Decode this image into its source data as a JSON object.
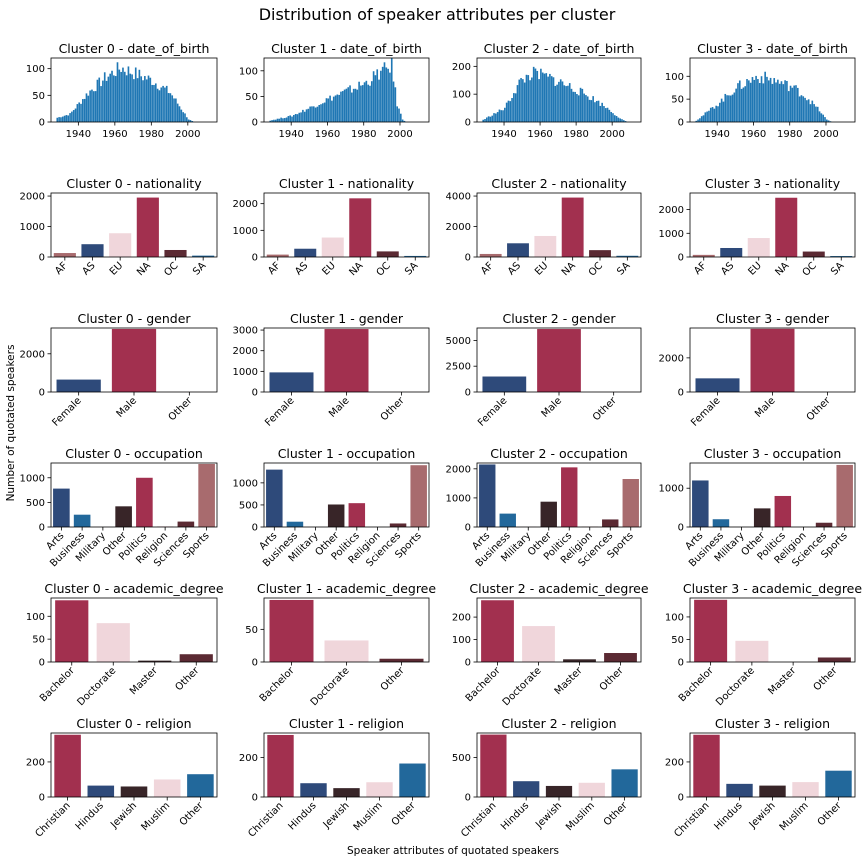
{
  "figure": {
    "title": "Distribution of speaker attributes per cluster",
    "ylabel": "Number of quotated speakers",
    "xlabel": "Speaker attributes of quotated speakers"
  },
  "colors": {
    "blue": "#1f77b4",
    "navy": "#2e4a7a",
    "crimson": "#a2304f",
    "pink": "#f0d6db",
    "maroon": "#5b2a33",
    "dark": "#382528",
    "rose": "#a86b6e",
    "midblue": "#22689b"
  },
  "chart_data": [
    {
      "type": "bar",
      "attribute": "date_of_birth",
      "cluster": 0,
      "title": "Cluster 0 - date_of_birth",
      "xlim": [
        1925,
        2016
      ],
      "xticks": [
        1940,
        1960,
        1980,
        2000
      ],
      "ylim": [
        0,
        120
      ],
      "yticks": [
        0,
        50,
        100
      ],
      "curve": [
        [
          1928,
          8
        ],
        [
          1935,
          15
        ],
        [
          1945,
          55
        ],
        [
          1955,
          85
        ],
        [
          1963,
          102
        ],
        [
          1970,
          92
        ],
        [
          1980,
          78
        ],
        [
          1990,
          55
        ],
        [
          1996,
          25
        ],
        [
          2000,
          5
        ],
        [
          2003,
          0
        ]
      ]
    },
    {
      "type": "bar",
      "attribute": "date_of_birth",
      "cluster": 1,
      "title": "Cluster 1 - date_of_birth",
      "xlim": [
        1925,
        2016
      ],
      "xticks": [
        1940,
        1960,
        1980,
        2000
      ],
      "ylim": [
        0,
        125
      ],
      "yticks": [
        0,
        50,
        100
      ],
      "curve": [
        [
          1928,
          3
        ],
        [
          1940,
          12
        ],
        [
          1950,
          28
        ],
        [
          1960,
          45
        ],
        [
          1970,
          60
        ],
        [
          1980,
          75
        ],
        [
          1988,
          95
        ],
        [
          1995,
          110
        ],
        [
          1998,
          35
        ],
        [
          2001,
          5
        ],
        [
          2003,
          0
        ]
      ]
    },
    {
      "type": "bar",
      "attribute": "date_of_birth",
      "cluster": 2,
      "title": "Cluster 2 - date_of_birth",
      "xlim": [
        1925,
        2016
      ],
      "xticks": [
        1940,
        1960,
        1980,
        2000
      ],
      "ylim": [
        0,
        230
      ],
      "yticks": [
        0,
        100,
        200
      ],
      "curve": [
        [
          1928,
          8
        ],
        [
          1940,
          50
        ],
        [
          1948,
          140
        ],
        [
          1955,
          175
        ],
        [
          1962,
          165
        ],
        [
          1970,
          145
        ],
        [
          1980,
          115
        ],
        [
          1990,
          80
        ],
        [
          1998,
          45
        ],
        [
          2004,
          12
        ],
        [
          2008,
          0
        ]
      ]
    },
    {
      "type": "bar",
      "attribute": "date_of_birth",
      "cluster": 3,
      "title": "Cluster 3 - date_of_birth",
      "xlim": [
        1925,
        2016
      ],
      "xticks": [
        1940,
        1960,
        1980,
        2000
      ],
      "ylim": [
        0,
        140
      ],
      "yticks": [
        0,
        50,
        100
      ],
      "curve": [
        [
          1928,
          3
        ],
        [
          1940,
          40
        ],
        [
          1950,
          75
        ],
        [
          1962,
          100
        ],
        [
          1972,
          90
        ],
        [
          1982,
          75
        ],
        [
          1990,
          50
        ],
        [
          1996,
          25
        ],
        [
          2000,
          5
        ],
        [
          2003,
          0
        ]
      ]
    },
    {
      "type": "bar",
      "attribute": "nationality",
      "cluster": 0,
      "title": "Cluster 0 - nationality",
      "categories": [
        "AF",
        "AS",
        "EU",
        "NA",
        "OC",
        "SA"
      ],
      "values": [
        130,
        420,
        780,
        1950,
        230,
        45
      ],
      "colors": [
        "#a86b6e",
        "#2e4a7a",
        "#f0d6db",
        "#a2304f",
        "#5b2a33",
        "#22689b"
      ],
      "ylim": [
        0,
        2100
      ],
      "yticks": [
        0,
        1000,
        2000
      ],
      "rot": true
    },
    {
      "type": "bar",
      "attribute": "nationality",
      "cluster": 1,
      "title": "Cluster 1 - nationality",
      "categories": [
        "AF",
        "AS",
        "EU",
        "NA",
        "OC",
        "SA"
      ],
      "values": [
        90,
        310,
        730,
        2200,
        210,
        40
      ],
      "colors": [
        "#a86b6e",
        "#2e4a7a",
        "#f0d6db",
        "#a2304f",
        "#5b2a33",
        "#22689b"
      ],
      "ylim": [
        0,
        2400
      ],
      "yticks": [
        0,
        1000,
        2000
      ],
      "rot": true
    },
    {
      "type": "bar",
      "attribute": "nationality",
      "cluster": 2,
      "title": "Cluster 2 - nationality",
      "categories": [
        "AF",
        "AS",
        "EU",
        "NA",
        "OC",
        "SA"
      ],
      "values": [
        200,
        900,
        1380,
        3900,
        450,
        80
      ],
      "colors": [
        "#a86b6e",
        "#2e4a7a",
        "#f0d6db",
        "#a2304f",
        "#5b2a33",
        "#22689b"
      ],
      "ylim": [
        0,
        4200
      ],
      "yticks": [
        0,
        2000,
        4000
      ],
      "rot": true
    },
    {
      "type": "bar",
      "attribute": "nationality",
      "cluster": 3,
      "title": "Cluster 3 - nationality",
      "categories": [
        "AF",
        "AS",
        "EU",
        "NA",
        "OC",
        "SA"
      ],
      "values": [
        90,
        380,
        800,
        2500,
        230,
        40
      ],
      "colors": [
        "#a86b6e",
        "#2e4a7a",
        "#f0d6db",
        "#a2304f",
        "#5b2a33",
        "#22689b"
      ],
      "ylim": [
        0,
        2700
      ],
      "yticks": [
        0,
        1000,
        2000
      ],
      "rot": true
    },
    {
      "type": "bar",
      "attribute": "gender",
      "cluster": 0,
      "title": "Cluster 0 - gender",
      "categories": [
        "Female",
        "Male",
        "Other"
      ],
      "values": [
        650,
        3300,
        5
      ],
      "colors": [
        "#2e4a7a",
        "#a2304f",
        "#f0d6db"
      ],
      "ylim": [
        0,
        3350
      ],
      "yticks": [
        0,
        2000
      ],
      "rot": true
    },
    {
      "type": "bar",
      "attribute": "gender",
      "cluster": 1,
      "title": "Cluster 1 - gender",
      "categories": [
        "Female",
        "Male",
        "Other"
      ],
      "values": [
        950,
        3050,
        5
      ],
      "colors": [
        "#2e4a7a",
        "#a2304f",
        "#f0d6db"
      ],
      "ylim": [
        0,
        3100
      ],
      "yticks": [
        0,
        1000,
        2000,
        3000
      ],
      "rot": true
    },
    {
      "type": "bar",
      "attribute": "gender",
      "cluster": 2,
      "title": "Cluster 2 - gender",
      "categories": [
        "Female",
        "Male",
        "Other"
      ],
      "values": [
        1500,
        6100,
        10
      ],
      "colors": [
        "#2e4a7a",
        "#a2304f",
        "#f0d6db"
      ],
      "ylim": [
        0,
        6200
      ],
      "yticks": [
        0,
        2500,
        5000
      ],
      "rot": true
    },
    {
      "type": "bar",
      "attribute": "gender",
      "cluster": 3,
      "title": "Cluster 3 - gender",
      "categories": [
        "Female",
        "Male",
        "Other"
      ],
      "values": [
        800,
        3700,
        5
      ],
      "colors": [
        "#2e4a7a",
        "#a2304f",
        "#f0d6db"
      ],
      "ylim": [
        0,
        3750
      ],
      "yticks": [
        0,
        2000
      ],
      "rot": true
    },
    {
      "type": "bar",
      "attribute": "occupation",
      "cluster": 0,
      "title": "Cluster 0 - occupation",
      "categories": [
        "Arts",
        "Business",
        "Military",
        "Other",
        "Politics",
        "Religion",
        "Sciences",
        "Sports"
      ],
      "values": [
        780,
        250,
        5,
        420,
        1000,
        15,
        110,
        1280
      ],
      "colors": [
        "#2e4a7a",
        "#22689b",
        "#f0d6db",
        "#382528",
        "#a2304f",
        "#f0d6db",
        "#5b2a33",
        "#a86b6e"
      ],
      "ylim": [
        0,
        1300
      ],
      "yticks": [
        0,
        500,
        1000
      ],
      "rot": true
    },
    {
      "type": "bar",
      "attribute": "occupation",
      "cluster": 1,
      "title": "Cluster 1 - occupation",
      "categories": [
        "Arts",
        "Business",
        "Military",
        "Other",
        "Politics",
        "Religion",
        "Sciences",
        "Sports"
      ],
      "values": [
        1300,
        120,
        5,
        510,
        540,
        5,
        80,
        1400
      ],
      "colors": [
        "#2e4a7a",
        "#22689b",
        "#f0d6db",
        "#382528",
        "#a2304f",
        "#f0d6db",
        "#5b2a33",
        "#a86b6e"
      ],
      "ylim": [
        0,
        1450
      ],
      "yticks": [
        0,
        500,
        1000
      ],
      "rot": true
    },
    {
      "type": "bar",
      "attribute": "occupation",
      "cluster": 2,
      "title": "Cluster 2 - occupation",
      "categories": [
        "Arts",
        "Business",
        "Military",
        "Other",
        "Politics",
        "Religion",
        "Sciences",
        "Sports"
      ],
      "values": [
        2150,
        460,
        10,
        870,
        2050,
        20,
        260,
        1650
      ],
      "colors": [
        "#2e4a7a",
        "#22689b",
        "#f0d6db",
        "#382528",
        "#a2304f",
        "#f0d6db",
        "#5b2a33",
        "#a86b6e"
      ],
      "ylim": [
        0,
        2200
      ],
      "yticks": [
        0,
        1000,
        2000
      ],
      "rot": true
    },
    {
      "type": "bar",
      "attribute": "occupation",
      "cluster": 3,
      "title": "Cluster 3 - occupation",
      "categories": [
        "Arts",
        "Business",
        "Military",
        "Other",
        "Politics",
        "Religion",
        "Sciences",
        "Sports"
      ],
      "values": [
        1200,
        200,
        5,
        480,
        800,
        5,
        110,
        1600
      ],
      "colors": [
        "#2e4a7a",
        "#22689b",
        "#f0d6db",
        "#382528",
        "#a2304f",
        "#f0d6db",
        "#5b2a33",
        "#a86b6e"
      ],
      "ylim": [
        0,
        1650
      ],
      "yticks": [
        0,
        1000
      ],
      "rot": true
    },
    {
      "type": "bar",
      "attribute": "academic_degree",
      "cluster": 0,
      "title": "Cluster 0 - academic_degree",
      "categories": [
        "Bachelor",
        "Doctorate",
        "Master",
        "Other"
      ],
      "values": [
        135,
        85,
        3,
        17
      ],
      "colors": [
        "#a2304f",
        "#f0d6db",
        "#382528",
        "#5b2a33"
      ],
      "ylim": [
        0,
        140
      ],
      "yticks": [
        0,
        50,
        100
      ],
      "rot": true
    },
    {
      "type": "bar",
      "attribute": "academic_degree",
      "cluster": 1,
      "title": "Cluster 1 - academic_degree",
      "categories": [
        "Bachelor",
        "Doctorate",
        "Other"
      ],
      "values": [
        95,
        33,
        5
      ],
      "colors": [
        "#a2304f",
        "#f0d6db",
        "#5b2a33"
      ],
      "ylim": [
        0,
        98
      ],
      "yticks": [
        0,
        50
      ],
      "rot": true
    },
    {
      "type": "bar",
      "attribute": "academic_degree",
      "cluster": 2,
      "title": "Cluster 2 - academic_degree",
      "categories": [
        "Bachelor",
        "Doctorate",
        "Master",
        "Other"
      ],
      "values": [
        275,
        160,
        12,
        40
      ],
      "colors": [
        "#a2304f",
        "#f0d6db",
        "#382528",
        "#5b2a33"
      ],
      "ylim": [
        0,
        285
      ],
      "yticks": [
        0,
        100,
        200
      ],
      "rot": true
    },
    {
      "type": "bar",
      "attribute": "academic_degree",
      "cluster": 3,
      "title": "Cluster 3 - academic_degree",
      "categories": [
        "Bachelor",
        "Doctorate",
        "Master",
        "Other"
      ],
      "values": [
        138,
        47,
        0,
        10
      ],
      "colors": [
        "#a2304f",
        "#f0d6db",
        "#382528",
        "#5b2a33"
      ],
      "ylim": [
        0,
        142
      ],
      "yticks": [
        0,
        50,
        100
      ],
      "rot": true
    },
    {
      "type": "bar",
      "attribute": "religion",
      "cluster": 0,
      "title": "Cluster 0 - religion",
      "categories": [
        "Christian",
        "Hindus",
        "Jewish",
        "Muslim",
        "Other"
      ],
      "values": [
        355,
        65,
        60,
        100,
        130
      ],
      "colors": [
        "#a2304f",
        "#2e4a7a",
        "#382528",
        "#f0d6db",
        "#22689b"
      ],
      "ylim": [
        0,
        365
      ],
      "yticks": [
        0,
        200
      ],
      "rot": true
    },
    {
      "type": "bar",
      "attribute": "religion",
      "cluster": 1,
      "title": "Cluster 1 - religion",
      "categories": [
        "Christian",
        "Hindus",
        "Jewish",
        "Muslim",
        "Other"
      ],
      "values": [
        315,
        70,
        45,
        75,
        170
      ],
      "colors": [
        "#a2304f",
        "#2e4a7a",
        "#382528",
        "#f0d6db",
        "#22689b"
      ],
      "ylim": [
        0,
        325
      ],
      "yticks": [
        0,
        200
      ],
      "rot": true
    },
    {
      "type": "bar",
      "attribute": "religion",
      "cluster": 2,
      "title": "Cluster 2 - religion",
      "categories": [
        "Christian",
        "Hindus",
        "Jewish",
        "Muslim",
        "Other"
      ],
      "values": [
        790,
        200,
        140,
        180,
        350
      ],
      "colors": [
        "#a2304f",
        "#2e4a7a",
        "#382528",
        "#f0d6db",
        "#22689b"
      ],
      "ylim": [
        0,
        810
      ],
      "yticks": [
        0,
        500
      ],
      "rot": true
    },
    {
      "type": "bar",
      "attribute": "religion",
      "cluster": 3,
      "title": "Cluster 3 - religion",
      "categories": [
        "Christian",
        "Hindus",
        "Jewish",
        "Muslim",
        "Other"
      ],
      "values": [
        355,
        75,
        65,
        85,
        150
      ],
      "colors": [
        "#a2304f",
        "#2e4a7a",
        "#382528",
        "#f0d6db",
        "#22689b"
      ],
      "ylim": [
        0,
        365
      ],
      "yticks": [
        0,
        200
      ],
      "rot": true
    }
  ]
}
